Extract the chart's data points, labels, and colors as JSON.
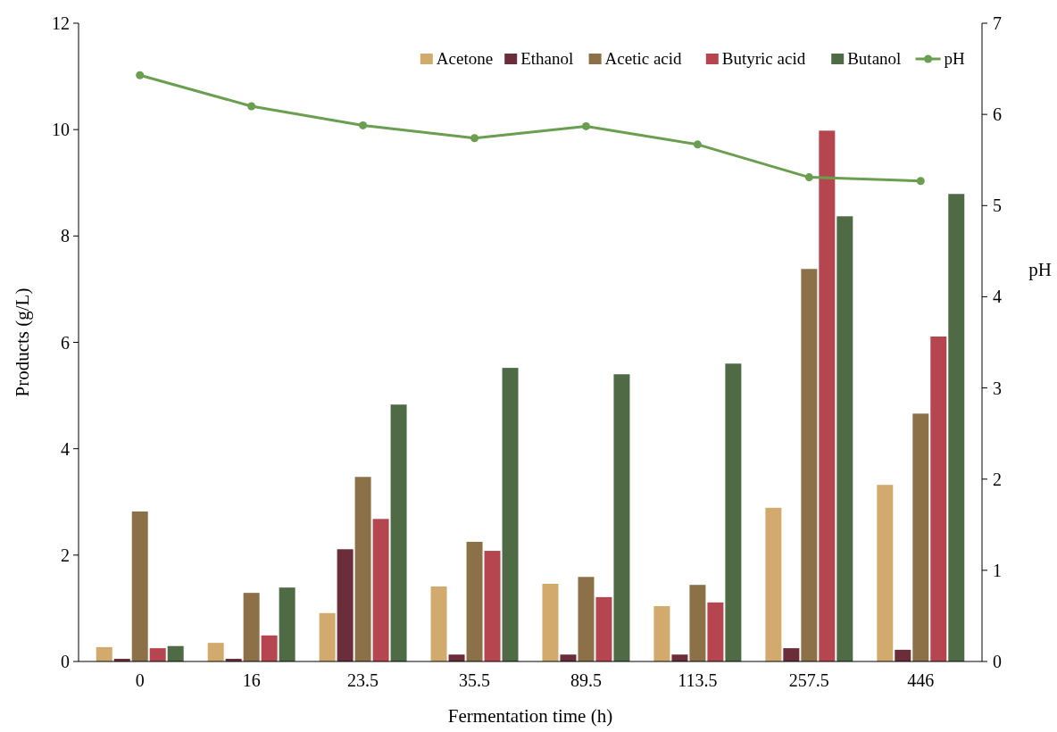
{
  "chart_data": {
    "type": "bar",
    "xlabel": "Fermentation time (h)",
    "ylabel": "Products (g/L)",
    "y2label": "pH",
    "categories": [
      "0",
      "16",
      "23.5",
      "35.5",
      "89.5",
      "113.5",
      "257.5",
      "446"
    ],
    "ylim": [
      0,
      12
    ],
    "yticks": [
      0,
      2,
      4,
      6,
      8,
      10,
      12
    ],
    "y2lim": [
      0,
      7
    ],
    "y2ticks": [
      0,
      1,
      2,
      3,
      4,
      5,
      6,
      7
    ],
    "legend": "top right",
    "marker": "circle",
    "series": [
      {
        "name": "Acetone",
        "color": "#d2aa6e",
        "values": [
          0.27,
          0.35,
          0.91,
          1.41,
          1.46,
          1.04,
          2.89,
          3.32
        ]
      },
      {
        "name": "Ethanol",
        "color": "#6b2d3a",
        "values": [
          0.05,
          0.05,
          2.11,
          0.13,
          0.13,
          0.13,
          0.25,
          0.22
        ]
      },
      {
        "name": "Acetic acid",
        "color": "#8c7148",
        "values": [
          2.82,
          1.29,
          3.47,
          2.25,
          1.59,
          1.44,
          7.38,
          4.66
        ]
      },
      {
        "name": "Butyric acid",
        "color": "#b5454f",
        "values": [
          0.25,
          0.49,
          2.68,
          2.08,
          1.21,
          1.11,
          9.98,
          6.11
        ]
      },
      {
        "name": "Butanol",
        "color": "#4f6b45",
        "values": [
          0.29,
          1.39,
          4.83,
          5.52,
          5.4,
          5.6,
          8.37,
          8.79
        ]
      },
      {
        "name": "pH",
        "type": "line",
        "axis": "y2",
        "color": "#6a9e50",
        "values": [
          6.43,
          6.09,
          5.88,
          5.74,
          5.87,
          5.67,
          5.31,
          5.27
        ]
      }
    ]
  }
}
